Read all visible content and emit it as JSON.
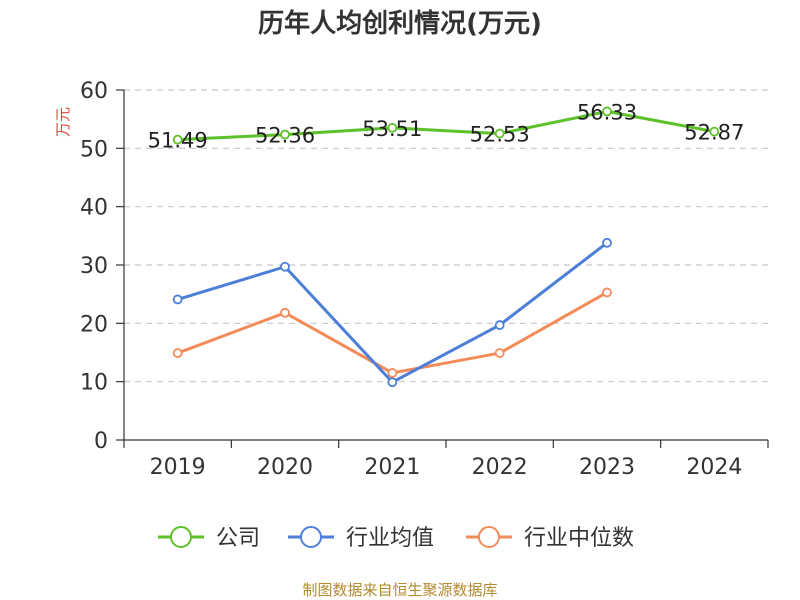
{
  "chart_data": {
    "type": "line",
    "title": "历年人均创利情况(万元)",
    "ylabel": "万元",
    "xlabel": "",
    "categories": [
      "2019",
      "2020",
      "2021",
      "2022",
      "2023",
      "2024"
    ],
    "ylim": [
      0,
      60
    ],
    "yticks": [
      0,
      10,
      20,
      30,
      40,
      50,
      60
    ],
    "grid": true,
    "legend_position": "bottom",
    "series": [
      {
        "name": "公司",
        "color": "#5dc12a",
        "values": [
          51.49,
          52.36,
          53.51,
          52.53,
          56.33,
          52.87
        ],
        "labels": [
          "51.49",
          "52.36",
          "53.51",
          "52.53",
          "56.33",
          "52.87"
        ]
      },
      {
        "name": "行业均值",
        "color": "#4e7fd8",
        "values": [
          24.1,
          29.7,
          9.9,
          19.7,
          33.8,
          null
        ]
      },
      {
        "name": "行业中位数",
        "color": "#f28b58",
        "values": [
          14.9,
          21.8,
          11.5,
          14.9,
          25.3,
          null
        ]
      }
    ]
  },
  "footer": {
    "source": "制图数据来自恒生聚源数据库"
  }
}
